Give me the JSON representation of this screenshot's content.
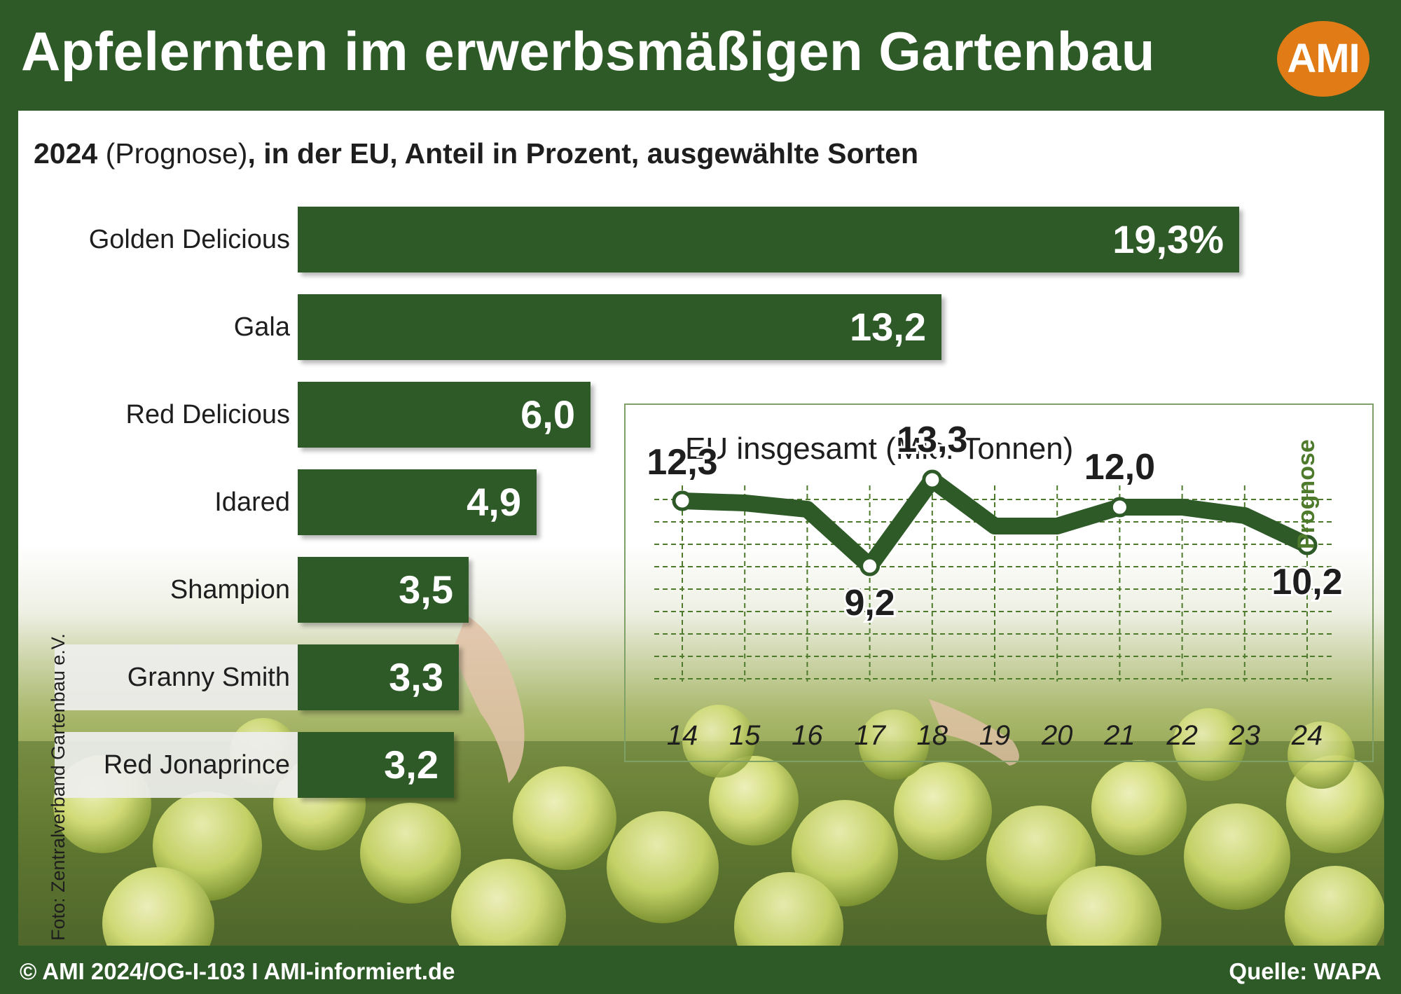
{
  "header": {
    "title": "Apfelernten im erwerbsmäßigen Gartenbau",
    "logo_text": "AMI"
  },
  "subtitle": {
    "year": "2024",
    "prognose": " (Prognose)",
    "rest": ", in der EU, Anteil in Prozent, ausgewählte Sorten"
  },
  "colors": {
    "brand_green": "#2e5a28",
    "logo_orange": "#e07b16",
    "prognose_green": "#4e7a2b"
  },
  "chart_data": [
    {
      "type": "bar",
      "orientation": "horizontal",
      "categories": [
        "Golden Delicious",
        "Gala",
        "Red Delicious",
        "Idared",
        "Shampion",
        "Granny Smith",
        "Red Jonaprince"
      ],
      "values": [
        19.3,
        13.2,
        6.0,
        4.9,
        3.5,
        3.3,
        3.2
      ],
      "value_labels": [
        "19,3%",
        "13,2",
        "6,0",
        "4,9",
        "3,5",
        "3,3",
        "3,2"
      ],
      "unit": "%",
      "xlim": [
        0,
        19.3
      ]
    },
    {
      "type": "line",
      "title": "EU insgesamt (Mio. Tonnen)",
      "x": [
        "14",
        "15",
        "16",
        "17",
        "18",
        "19",
        "20",
        "21",
        "22",
        "23",
        "24"
      ],
      "values": [
        12.3,
        12.2,
        11.9,
        9.2,
        13.3,
        11.1,
        11.1,
        12.0,
        12.0,
        11.6,
        10.2
      ],
      "labeled_points": [
        {
          "x": "14",
          "label": "12,3"
        },
        {
          "x": "17",
          "label": "9,2"
        },
        {
          "x": "18",
          "label": "13,3"
        },
        {
          "x": "21",
          "label": "12,0"
        },
        {
          "x": "24",
          "label": "10,2"
        }
      ],
      "forecast_label": "Prognose",
      "ylim": [
        8.5,
        14.5
      ],
      "grid": true
    }
  ],
  "footer": {
    "photo_credit": "Foto: Zentralverband Gartenbau e.V.",
    "copyright": "© AMI 2024/OG-I-103 I AMI-informiert.de",
    "source": "Quelle: WAPA"
  }
}
